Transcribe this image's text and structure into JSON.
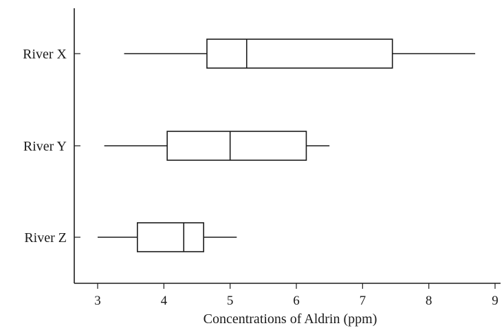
{
  "chart_data": {
    "type": "boxplot",
    "orientation": "horizontal",
    "title": "",
    "xlabel": "Concentrations of Aldrin (ppm)",
    "ylabel": "",
    "xlim": [
      2.65,
      9.1
    ],
    "xticks": [
      3,
      4,
      5,
      6,
      7,
      8,
      9
    ],
    "grid": false,
    "categories": [
      "River X",
      "River Y",
      "River Z"
    ],
    "series": [
      {
        "category": "River X",
        "min": 3.4,
        "q1": 4.65,
        "median": 5.25,
        "q3": 7.45,
        "max": 8.7
      },
      {
        "category": "River Y",
        "min": 3.1,
        "q1": 4.05,
        "median": 5.0,
        "q3": 6.15,
        "max": 6.5
      },
      {
        "category": "River Z",
        "min": 3.0,
        "q1": 3.6,
        "median": 4.3,
        "q3": 4.6,
        "max": 5.1
      }
    ]
  }
}
